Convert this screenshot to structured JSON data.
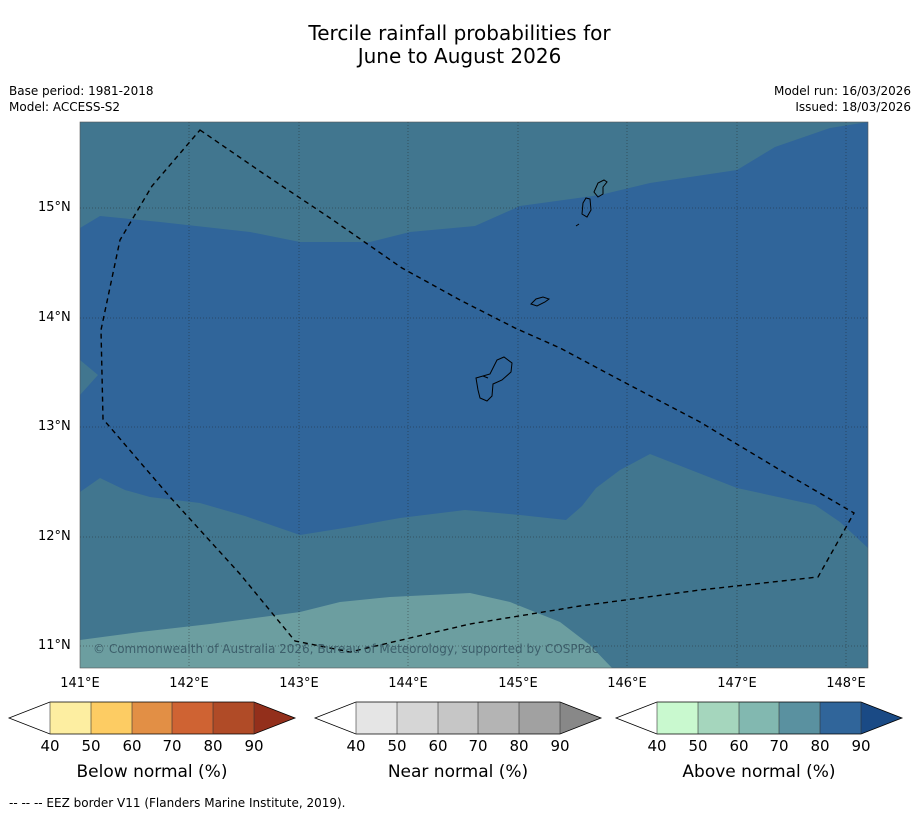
{
  "title": {
    "line1": "Tercile rainfall probabilities for",
    "line2": "June to August 2026"
  },
  "meta": {
    "base_period": "Base period: 1981-2018",
    "model": "Model: ACCESS-S2",
    "model_run": "Model run: 16/03/2026",
    "issued": "Issued: 18/03/2026"
  },
  "map": {
    "copyright": "© Commonwealth of Australia 2026, Bureau of Meteorology, supported by COSPPac",
    "lat_labels": [
      "15°N",
      "14°N",
      "13°N",
      "12°N",
      "11°N"
    ],
    "lon_labels": [
      "141°E",
      "142°E",
      "143°E",
      "144°E",
      "145°E",
      "146°E",
      "147°E",
      "148°E"
    ],
    "colors": {
      "above_70_80": "#41768f",
      "above_80_90": "#30659a",
      "above_60_70": "#6c9ea0"
    }
  },
  "colorbars": [
    {
      "name": "below",
      "label": "Below normal (%)",
      "ticks": [
        "40",
        "50",
        "60",
        "70",
        "80",
        "90"
      ],
      "colors": [
        "#ffffff",
        "#fdeea1",
        "#fdcc63",
        "#e28f45",
        "#cf6333",
        "#b04b27",
        "#932f1b"
      ]
    },
    {
      "name": "near",
      "label": "Near normal (%)",
      "ticks": [
        "40",
        "50",
        "60",
        "70",
        "80",
        "90"
      ],
      "colors": [
        "#ffffff",
        "#e5e5e5",
        "#d6d6d6",
        "#c6c6c6",
        "#b4b4b4",
        "#a1a1a1",
        "#888888"
      ]
    },
    {
      "name": "above",
      "label": "Above normal (%)",
      "ticks": [
        "40",
        "50",
        "60",
        "70",
        "80",
        "90"
      ],
      "colors": [
        "#ffffff",
        "#c9f9cf",
        "#a5d6bd",
        "#82b8b0",
        "#5a91a0",
        "#30659a",
        "#1a4a85"
      ]
    }
  ],
  "footnote": "--  --  -- EEZ border V11 (Flanders Marine Institute, 2019)."
}
